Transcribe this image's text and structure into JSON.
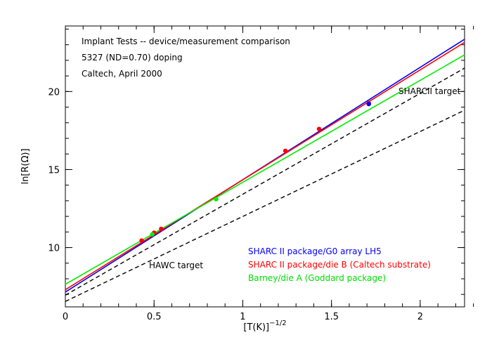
{
  "chart_data": {
    "type": "line",
    "title": "",
    "xlabel_base": "[T(K)]",
    "xlabel_exp": "−1/2",
    "ylabel": "ln[R(Ω)]",
    "xlim": [
      0,
      2.25
    ],
    "ylim": [
      6.2,
      24.2
    ],
    "x_ticks": [
      0,
      0.5,
      1,
      1.5,
      2
    ],
    "x_tick_labels": [
      "0",
      "0.5",
      "1",
      "1.5",
      "2"
    ],
    "y_ticks": [
      10,
      15,
      20
    ],
    "y_tick_labels": [
      "10",
      "15",
      "20"
    ],
    "x_minor_step": 0.1,
    "y_minor_step": 1,
    "grid": false,
    "annotations": [
      "Implant Tests -- device/measurement comparison",
      "5327 (ND=0.70) doping",
      "Caltech, April 2000"
    ],
    "target_labels": [
      "SHARCII target",
      "HAWC target"
    ],
    "legend_position": "bottom-right",
    "series": [
      {
        "name": "SHARC II package/G0 array LH5",
        "color": "#0000ff",
        "style": "solid",
        "x": [
          0,
          2.25
        ],
        "y": [
          7.15,
          23.35
        ]
      },
      {
        "name": "SHARC II package/die B (Caltech substrate)",
        "color": "#ff0000",
        "style": "solid",
        "x": [
          0,
          2.25
        ],
        "y": [
          7.3,
          23.15
        ]
      },
      {
        "name": "Barney/die A (Goddard package)",
        "color": "#00ee00",
        "style": "solid",
        "x": [
          0,
          2.25
        ],
        "y": [
          7.65,
          22.35
        ]
      },
      {
        "name": "",
        "color": "#000000",
        "style": "dashed",
        "x": [
          0,
          2.25
        ],
        "y": [
          6.95,
          21.5
        ]
      },
      {
        "name": "",
        "color": "#000000",
        "style": "dashed",
        "x": [
          0,
          2.25
        ],
        "y": [
          6.55,
          18.8
        ]
      }
    ],
    "points": [
      {
        "x": 0.43,
        "y": 10.45,
        "color": "#ff0000"
      },
      {
        "x": 0.5,
        "y": 10.95,
        "color": "#ff0000"
      },
      {
        "x": 0.54,
        "y": 11.2,
        "color": "#ff0000"
      },
      {
        "x": 1.24,
        "y": 16.2,
        "color": "#ff0000"
      },
      {
        "x": 1.43,
        "y": 17.6,
        "color": "#ff0000"
      },
      {
        "x": 1.71,
        "y": 19.25,
        "color": "#ff0000"
      },
      {
        "x": 0.49,
        "y": 10.85,
        "color": "#00ee00"
      },
      {
        "x": 0.85,
        "y": 13.1,
        "color": "#00ee00"
      },
      {
        "x": 1.71,
        "y": 19.2,
        "color": "#0000ff"
      }
    ]
  }
}
